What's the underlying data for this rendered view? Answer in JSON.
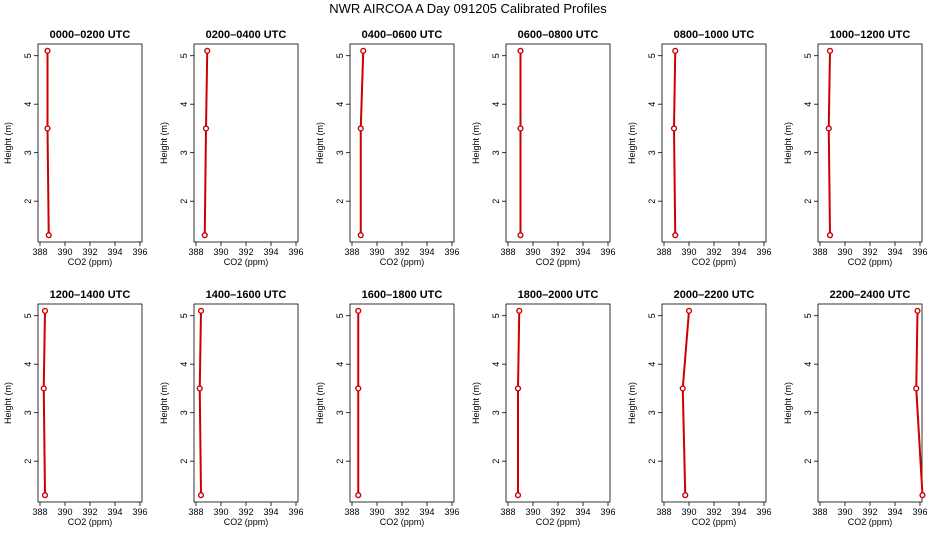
{
  "figure": {
    "title": "NWR AIRCOA A  Day 091205  Calibrated Profiles"
  },
  "colors": {
    "profile": "#cc0000",
    "axis": "#000000",
    "background": "#ffffff"
  },
  "chart_data": [
    {
      "type": "line",
      "title": "0000–0200 UTC",
      "xlabel": "CO2 (ppm)",
      "ylabel": "Height (m)",
      "xlim": [
        388,
        396
      ],
      "ylim": [
        1.2,
        5.2
      ],
      "xticks": [
        "388",
        "390",
        "392",
        "394",
        "396"
      ],
      "yticks": [
        "2",
        "3",
        "4",
        "5"
      ],
      "series": [
        {
          "x": [
            388.7,
            388.6,
            388.6
          ],
          "y": [
            1.3,
            3.5,
            5.1
          ]
        }
      ]
    },
    {
      "type": "line",
      "title": "0200–0400 UTC",
      "xlabel": "CO2 (ppm)",
      "ylabel": "Height (m)",
      "xlim": [
        388,
        396
      ],
      "ylim": [
        1.2,
        5.2
      ],
      "xticks": [
        "388",
        "390",
        "392",
        "394",
        "396"
      ],
      "yticks": [
        "2",
        "3",
        "4",
        "5"
      ],
      "series": [
        {
          "x": [
            388.7,
            388.8,
            388.9
          ],
          "y": [
            1.3,
            3.5,
            5.1
          ]
        }
      ]
    },
    {
      "type": "line",
      "title": "0400–0600 UTC",
      "xlabel": "CO2 (ppm)",
      "ylabel": "Height (m)",
      "xlim": [
        388,
        396
      ],
      "ylim": [
        1.2,
        5.2
      ],
      "xticks": [
        "388",
        "390",
        "392",
        "394",
        "396"
      ],
      "yticks": [
        "2",
        "3",
        "4",
        "5"
      ],
      "series": [
        {
          "x": [
            388.7,
            388.7,
            388.9
          ],
          "y": [
            1.3,
            3.5,
            5.1
          ]
        }
      ]
    },
    {
      "type": "line",
      "title": "0600–0800 UTC",
      "xlabel": "CO2 (ppm)",
      "ylabel": "Height (m)",
      "xlim": [
        388,
        396
      ],
      "ylim": [
        1.2,
        5.2
      ],
      "xticks": [
        "388",
        "390",
        "392",
        "394",
        "396"
      ],
      "yticks": [
        "2",
        "3",
        "4",
        "5"
      ],
      "series": [
        {
          "x": [
            389.0,
            389.0,
            389.0
          ],
          "y": [
            1.3,
            3.5,
            5.1
          ]
        }
      ]
    },
    {
      "type": "line",
      "title": "0800–1000 UTC",
      "xlabel": "CO2 (ppm)",
      "ylabel": "Height (m)",
      "xlim": [
        388,
        396
      ],
      "ylim": [
        1.2,
        5.2
      ],
      "xticks": [
        "388",
        "390",
        "392",
        "394",
        "396"
      ],
      "yticks": [
        "2",
        "3",
        "4",
        "5"
      ],
      "series": [
        {
          "x": [
            388.9,
            388.8,
            388.9
          ],
          "y": [
            1.3,
            3.5,
            5.1
          ]
        }
      ]
    },
    {
      "type": "line",
      "title": "1000–1200 UTC",
      "xlabel": "CO2 (ppm)",
      "ylabel": "Height (m)",
      "xlim": [
        388,
        396
      ],
      "ylim": [
        1.2,
        5.2
      ],
      "xticks": [
        "388",
        "390",
        "392",
        "394",
        "396"
      ],
      "yticks": [
        "2",
        "3",
        "4",
        "5"
      ],
      "series": [
        {
          "x": [
            388.8,
            388.7,
            388.8
          ],
          "y": [
            1.3,
            3.5,
            5.1
          ]
        }
      ]
    },
    {
      "type": "line",
      "title": "1200–1400 UTC",
      "xlabel": "CO2 (ppm)",
      "ylabel": "Height (m)",
      "xlim": [
        388,
        396
      ],
      "ylim": [
        1.2,
        5.2
      ],
      "xticks": [
        "388",
        "390",
        "392",
        "394",
        "396"
      ],
      "yticks": [
        "2",
        "3",
        "4",
        "5"
      ],
      "series": [
        {
          "x": [
            388.4,
            388.3,
            388.4
          ],
          "y": [
            1.3,
            3.5,
            5.1
          ]
        }
      ]
    },
    {
      "type": "line",
      "title": "1400–1600 UTC",
      "xlabel": "CO2 (ppm)",
      "ylabel": "Height (m)",
      "xlim": [
        388,
        396
      ],
      "ylim": [
        1.2,
        5.2
      ],
      "xticks": [
        "388",
        "390",
        "392",
        "394",
        "396"
      ],
      "yticks": [
        "2",
        "3",
        "4",
        "5"
      ],
      "series": [
        {
          "x": [
            388.4,
            388.3,
            388.4
          ],
          "y": [
            1.3,
            3.5,
            5.1
          ]
        }
      ]
    },
    {
      "type": "line",
      "title": "1600–1800 UTC",
      "xlabel": "CO2 (ppm)",
      "ylabel": "Height (m)",
      "xlim": [
        388,
        396
      ],
      "ylim": [
        1.2,
        5.2
      ],
      "xticks": [
        "388",
        "390",
        "392",
        "394",
        "396"
      ],
      "yticks": [
        "2",
        "3",
        "4",
        "5"
      ],
      "series": [
        {
          "x": [
            388.5,
            388.5,
            388.5
          ],
          "y": [
            1.3,
            3.5,
            5.1
          ]
        }
      ]
    },
    {
      "type": "line",
      "title": "1800–2000 UTC",
      "xlabel": "CO2 (ppm)",
      "ylabel": "Height (m)",
      "xlim": [
        388,
        396
      ],
      "ylim": [
        1.2,
        5.2
      ],
      "xticks": [
        "388",
        "390",
        "392",
        "394",
        "396"
      ],
      "yticks": [
        "2",
        "3",
        "4",
        "5"
      ],
      "series": [
        {
          "x": [
            388.8,
            388.8,
            388.9
          ],
          "y": [
            1.3,
            3.5,
            5.1
          ]
        }
      ]
    },
    {
      "type": "line",
      "title": "2000–2200 UTC",
      "xlabel": "CO2 (ppm)",
      "ylabel": "Height (m)",
      "xlim": [
        388,
        396
      ],
      "ylim": [
        1.2,
        5.2
      ],
      "xticks": [
        "388",
        "390",
        "392",
        "394",
        "396"
      ],
      "yticks": [
        "2",
        "3",
        "4",
        "5"
      ],
      "series": [
        {
          "x": [
            389.7,
            389.5,
            390.0
          ],
          "y": [
            1.3,
            3.5,
            5.1
          ]
        }
      ]
    },
    {
      "type": "line",
      "title": "2200–2400 UTC",
      "xlabel": "CO2 (ppm)",
      "ylabel": "Height (m)",
      "xlim": [
        388,
        396
      ],
      "ylim": [
        1.2,
        5.2
      ],
      "xticks": [
        "388",
        "390",
        "392",
        "394",
        "396"
      ],
      "yticks": [
        "2",
        "3",
        "4",
        "5"
      ],
      "series": [
        {
          "x": [
            396.2,
            395.7,
            395.8
          ],
          "y": [
            1.3,
            3.5,
            5.1
          ]
        }
      ]
    }
  ]
}
